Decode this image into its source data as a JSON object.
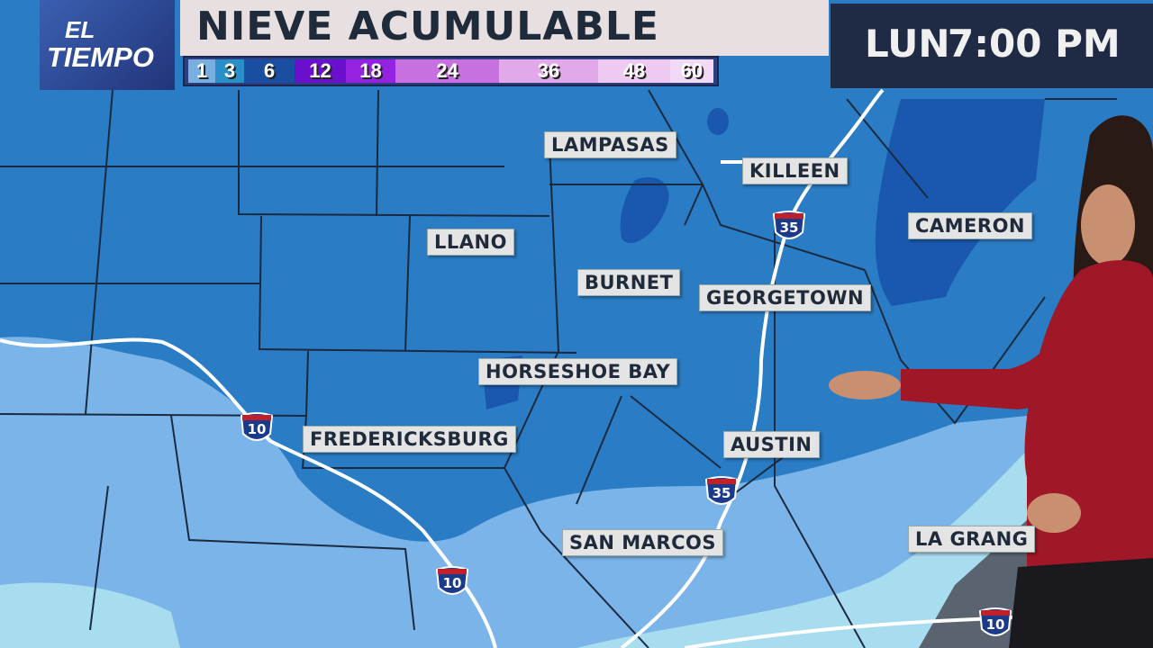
{
  "logo": {
    "line1": "EL",
    "line2": "TIEMPO"
  },
  "title": "NIEVE ACUMULABLE",
  "legend": [
    {
      "label": "1",
      "color": "#78aee0"
    },
    {
      "label": "3",
      "color": "#2a8ec8"
    },
    {
      "label": "6",
      "color": "#1a4ea0"
    },
    {
      "label": "12",
      "color": "#6a10cc"
    },
    {
      "label": "18",
      "color": "#9422e0"
    },
    {
      "label": "24",
      "color": "#c870e0"
    },
    {
      "label": "36",
      "color": "#e2a8ea"
    },
    {
      "label": "48",
      "color": "#eecaf2"
    },
    {
      "label": "60",
      "color": "#f2daf6"
    }
  ],
  "time": {
    "day": "LUN",
    "time": "7:00 PM"
  },
  "cities": [
    "LAMPASAS",
    "KILLEEN",
    "CAMERON",
    "LLANO",
    "BURNET",
    "GEORGETOWN",
    "HORSESHOE BAY",
    "FREDERICKSBURG",
    "AUSTIN",
    "SAN MARCOS",
    "LA GRANG"
  ],
  "highways": [
    "35",
    "35",
    "10",
    "10",
    "10"
  ],
  "colors": {
    "zone_3in": "#2a7cc4",
    "zone_6in": "#1a58b0",
    "zone_1in": "#7ab4e8",
    "zone_trace": "#9ed8ee"
  }
}
